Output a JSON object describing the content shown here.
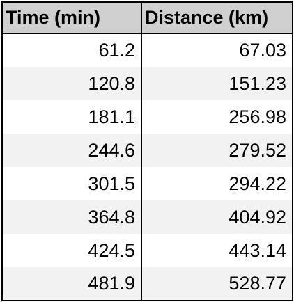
{
  "chart_data": {
    "type": "table",
    "columns": [
      "Time (min)",
      "Distance (km)"
    ],
    "rows": [
      [
        "61.2",
        "67.03"
      ],
      [
        "120.8",
        "151.23"
      ],
      [
        "181.1",
        "256.98"
      ],
      [
        "244.6",
        "279.52"
      ],
      [
        "301.5",
        "294.22"
      ],
      [
        "364.8",
        "404.92"
      ],
      [
        "424.5",
        "443.14"
      ],
      [
        "481.9",
        "528.77"
      ]
    ]
  },
  "colors": {
    "header_background": "#d0d0d0",
    "stripe_background": "#f2f2f2",
    "border": "#000000"
  }
}
